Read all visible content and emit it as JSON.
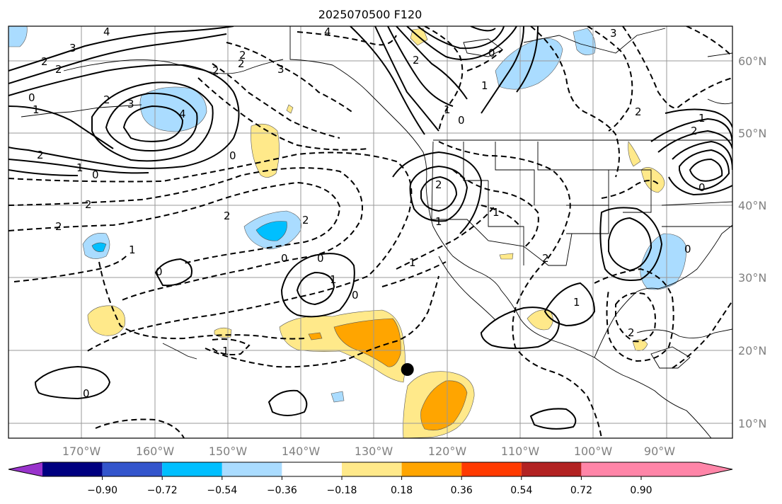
{
  "title": "2025070500 F120",
  "map": {
    "lon_range": [
      -180,
      -82
    ],
    "lat_range": [
      8,
      65
    ],
    "lon_ticks": [
      "170°W",
      "160°W",
      "150°W",
      "140°W",
      "130°W",
      "120°W",
      "110°W",
      "100°W",
      "90°W"
    ],
    "lat_ticks": [
      "60°N",
      "50°N",
      "40°N",
      "30°N",
      "20°N",
      "10°N"
    ],
    "gridlines": true,
    "storm_marker": {
      "lon": -126,
      "lat": 17.5,
      "color": "#000000"
    },
    "contour_labels": [
      "4",
      "3",
      "2",
      "2",
      "0",
      "1",
      "2",
      "3",
      "4",
      "2",
      "0",
      "1",
      "2",
      "2",
      "2",
      "1",
      "0",
      "0",
      "0",
      "1",
      "1",
      "2",
      "2",
      "2",
      "0",
      "1",
      "1",
      "0",
      "2",
      "1",
      "2",
      "1",
      "2",
      "4",
      "3",
      "2",
      "1",
      "2",
      "0",
      "0",
      "1",
      "0",
      "0",
      "0",
      "3",
      "2",
      "2",
      "1"
    ]
  },
  "colorbar": {
    "ticks": [
      "−0.90",
      "−0.72",
      "−0.54",
      "−0.36",
      "−0.18",
      "0.18",
      "0.36",
      "0.54",
      "0.72",
      "0.90"
    ],
    "colors": [
      "#9933cc",
      "#000080",
      "#3355cc",
      "#00bfff",
      "#aadcff",
      "#ffffff",
      "#ffe98a",
      "#ffa500",
      "#ff3a00",
      "#b22222",
      "#ff85a8"
    ],
    "extend": "both"
  }
}
